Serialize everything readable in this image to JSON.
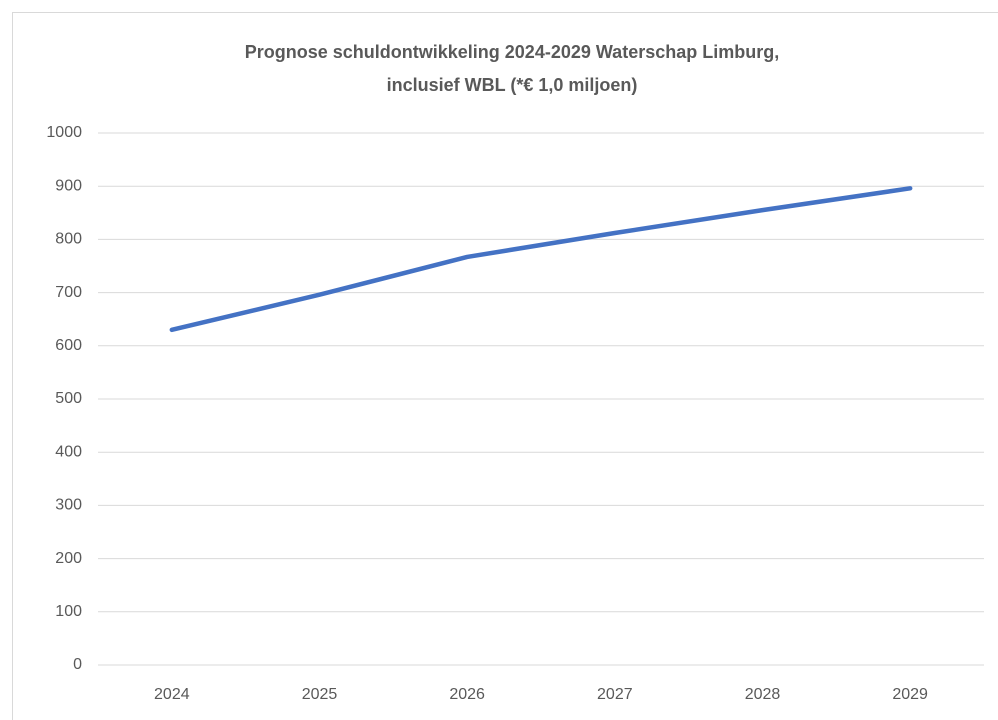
{
  "chart_data": {
    "type": "line",
    "title": [
      "Prognose schuldontwikkeling 2024-2029 Waterschap Limburg,",
      "inclusief WBL (*€ 1,0 miljoen)"
    ],
    "categories": [
      "2024",
      "2025",
      "2026",
      "2027",
      "2028",
      "2029"
    ],
    "series": [
      {
        "color": "#4472c4",
        "values": [
          630,
          696,
          767,
          812,
          855,
          896
        ]
      }
    ],
    "ylim": [
      0,
      1000
    ],
    "yticks": [
      0,
      100,
      200,
      300,
      400,
      500,
      600,
      700,
      800,
      900,
      1000
    ],
    "grid": true
  }
}
